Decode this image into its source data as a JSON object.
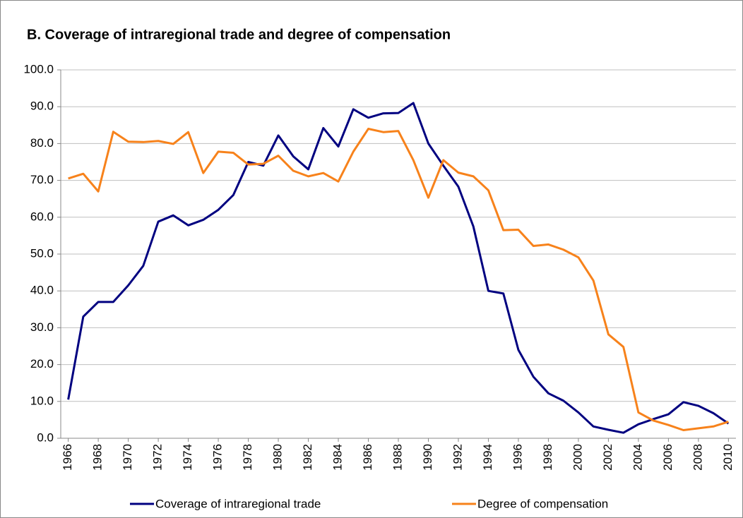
{
  "chart_data": {
    "type": "line",
    "title": "B. Coverage of intraregional trade and degree of compensation",
    "x": [
      1966,
      1967,
      1968,
      1969,
      1970,
      1971,
      1972,
      1973,
      1974,
      1975,
      1976,
      1977,
      1978,
      1979,
      1980,
      1981,
      1982,
      1983,
      1984,
      1985,
      1986,
      1987,
      1988,
      1989,
      1990,
      1991,
      1992,
      1993,
      1994,
      1995,
      1996,
      1997,
      1998,
      1999,
      2000,
      2001,
      2002,
      2003,
      2004,
      2005,
      2006,
      2007,
      2008,
      2009,
      2010
    ],
    "xlim": [
      1965.5,
      2010.5
    ],
    "xticks": [
      1966,
      1968,
      1970,
      1972,
      1974,
      1976,
      1978,
      1980,
      1982,
      1984,
      1986,
      1988,
      1990,
      1992,
      1994,
      1996,
      1998,
      2000,
      2002,
      2004,
      2006,
      2008,
      2010
    ],
    "ylim": [
      0,
      100
    ],
    "yticks": [
      {
        "value": 0,
        "label": "0.0"
      },
      {
        "value": 10,
        "label": "10.0"
      },
      {
        "value": 20,
        "label": "20.0"
      },
      {
        "value": 30,
        "label": "30.0"
      },
      {
        "value": 40,
        "label": "40.0"
      },
      {
        "value": 50,
        "label": "50.0"
      },
      {
        "value": 60,
        "label": "60.0"
      },
      {
        "value": 70,
        "label": "70.0"
      },
      {
        "value": 80,
        "label": "80.0"
      },
      {
        "value": 90,
        "label": "90.0"
      },
      {
        "value": 100,
        "label": "100.0"
      }
    ],
    "grid": true,
    "legend": "bottom",
    "series": [
      {
        "name": "Coverage of intraregional trade",
        "color": "#000080",
        "values": [
          10.5,
          33,
          37,
          37,
          41.5,
          46.8,
          58.8,
          60.5,
          57.8,
          59.3,
          62,
          66,
          75,
          74,
          82.2,
          76.5,
          73,
          84.2,
          79.2,
          89.3,
          87,
          88.2,
          88.3,
          91,
          80,
          74,
          68.3,
          57.5,
          40,
          39.3,
          24,
          16.7,
          12.2,
          10.2,
          7,
          3.2,
          2.3,
          1.5,
          3.8,
          5.2,
          6.5,
          9.8,
          8.8,
          6.8,
          4
        ]
      },
      {
        "name": "Degree of compensation",
        "color": "#f7821b",
        "values": [
          70.5,
          71.8,
          67,
          83.2,
          80.5,
          80.4,
          80.7,
          79.9,
          83.1,
          72,
          77.8,
          77.5,
          74.3,
          74.5,
          76.7,
          72.6,
          71.1,
          72,
          69.7,
          77.8,
          84,
          83.1,
          83.4,
          75.5,
          65.3,
          75.5,
          72.1,
          71.1,
          67.3,
          56.5,
          56.6,
          52.2,
          52.6,
          51.2,
          49.1,
          42.8,
          28.2,
          24.8,
          7,
          4.8,
          3.6,
          2.2,
          2.7,
          3.2,
          4.5
        ]
      }
    ]
  }
}
